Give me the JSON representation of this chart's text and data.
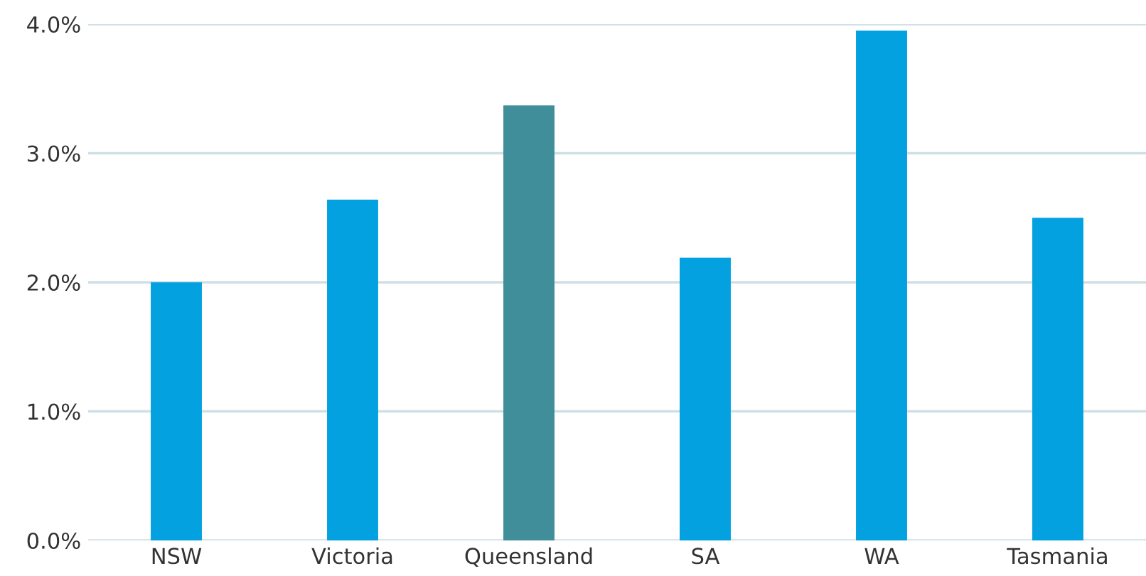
{
  "chart_data": {
    "type": "bar",
    "categories": [
      "NSW",
      "Victoria",
      "Queensland",
      "SA",
      "WA",
      "Tasmania"
    ],
    "values": [
      2.0,
      2.64,
      3.37,
      2.19,
      3.95,
      2.5
    ],
    "colors": [
      "#03a1e0",
      "#03a1e0",
      "#408e9a",
      "#03a1e0",
      "#03a1e0",
      "#03a1e0"
    ],
    "ylim": [
      0,
      4
    ],
    "yticks": [
      {
        "value": 0,
        "label": "0.0%"
      },
      {
        "value": 1,
        "label": "1.0%"
      },
      {
        "value": 2,
        "label": "2.0%"
      },
      {
        "value": 3,
        "label": "3.0%"
      },
      {
        "value": 4,
        "label": "4.0%"
      }
    ],
    "grid": "y"
  }
}
